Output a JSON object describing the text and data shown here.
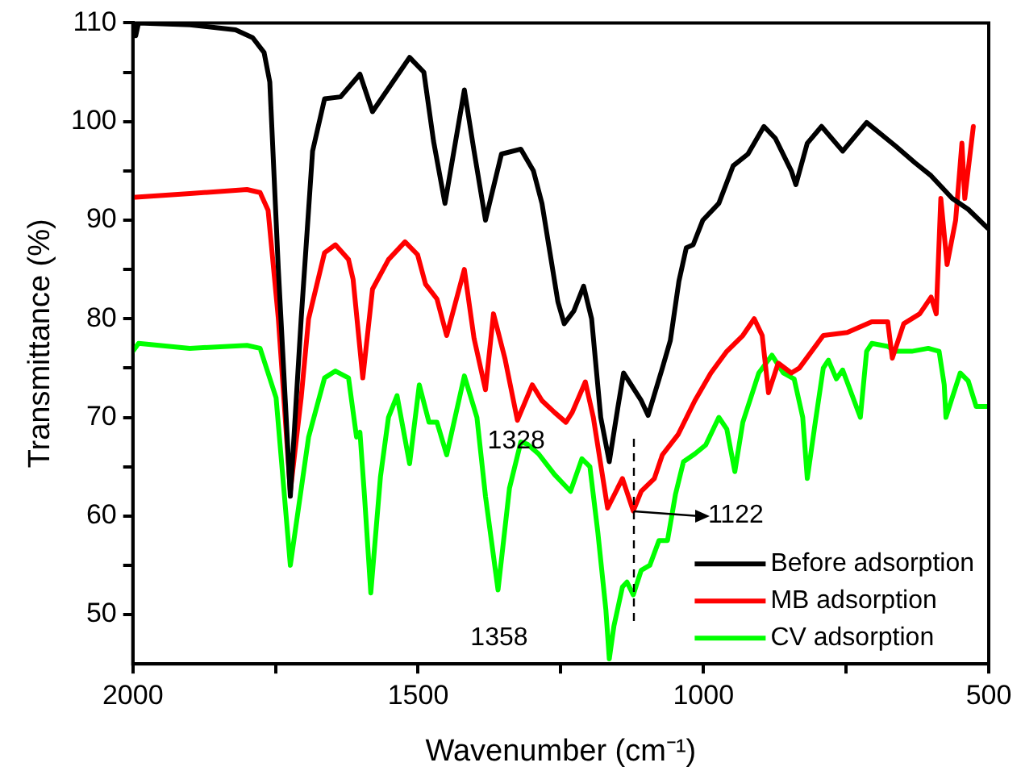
{
  "chart_data": {
    "type": "line",
    "xlabel": "Wavenumber (cm⁻¹)",
    "ylabel": "Transmittance (%)",
    "xlim": [
      2000,
      500
    ],
    "xticks": [
      2000,
      {
        "value": 1750,
        "label": null
      },
      1500,
      {
        "value": 1250,
        "label": null
      },
      1000,
      {
        "value": 750,
        "label": null
      },
      500
    ],
    "ylim": [
      45,
      110
    ],
    "yticks": [
      50,
      {
        "value": 55,
        "label": null
      },
      60,
      {
        "value": 65,
        "label": null
      },
      70,
      {
        "value": 75,
        "label": null
      },
      80,
      {
        "value": 85,
        "label": null
      },
      90,
      {
        "value": 95,
        "label": null
      },
      100,
      {
        "value": 105,
        "label": null
      },
      110
    ],
    "grid": false,
    "legend": "bottom right",
    "marker": "none",
    "line_style": "solid",
    "series": [
      {
        "name": "Before adsorption",
        "color": "#000000",
        "x": [
          2000,
          1995,
          1990,
          1900,
          1820,
          1790,
          1770,
          1760,
          1745,
          1724,
          1705,
          1685,
          1664,
          1636,
          1602,
          1580,
          1515,
          1490,
          1473,
          1453,
          1419,
          1402,
          1382,
          1354,
          1320,
          1298,
          1283,
          1269,
          1255,
          1244,
          1227,
          1210,
          1196,
          1180,
          1165,
          1150,
          1140,
          1109,
          1097,
          1072,
          1058,
          1043,
          1030,
          1018,
          1001,
          973,
          948,
          922,
          894,
          874,
          846,
          838,
          818,
          793,
          756,
          714,
          663,
          629,
          601,
          564,
          536,
          502
        ],
        "values": [
          110,
          108.7,
          110,
          109.8,
          109.3,
          108.5,
          107,
          104,
          85,
          62,
          80,
          97,
          102.3,
          102.5,
          104.8,
          101,
          106.5,
          105,
          98,
          91.7,
          103.2,
          97,
          90,
          96.7,
          97.2,
          95,
          91.7,
          86.7,
          81.7,
          79.5,
          80.8,
          83.3,
          80,
          70,
          65.5,
          71,
          74.5,
          71.7,
          70.2,
          75,
          77.8,
          83.8,
          87.2,
          87.5,
          90,
          91.7,
          95.5,
          96.7,
          99.5,
          98.3,
          95,
          93.6,
          97.8,
          99.5,
          97,
          99.9,
          97.5,
          95.8,
          94.5,
          92.2,
          91.1,
          89.2
        ]
      },
      {
        "name": "MB adsorption",
        "color": "#ff0000",
        "x": [
          2000,
          1900,
          1800,
          1777,
          1763,
          1745,
          1724,
          1705,
          1692,
          1664,
          1645,
          1622,
          1614,
          1597,
          1580,
          1552,
          1523,
          1501,
          1487,
          1467,
          1450,
          1419,
          1402,
          1382,
          1368,
          1348,
          1326,
          1300,
          1283,
          1261,
          1241,
          1230,
          1207,
          1193,
          1168,
          1142,
          1123,
          1109,
          1086,
          1072,
          1044,
          1015,
          987,
          959,
          931,
          911,
          897,
          886,
          869,
          846,
          832,
          790,
          748,
          705,
          677,
          669,
          649,
          621,
          601,
          592,
          584,
          573,
          558,
          547,
          542,
          527
        ],
        "values": [
          92.3,
          92.7,
          93.1,
          92.8,
          91,
          80,
          62.5,
          72,
          80,
          86.7,
          87.5,
          86,
          84,
          74,
          83,
          86,
          87.8,
          86.5,
          83.5,
          82,
          78.3,
          85,
          78,
          72.8,
          80.5,
          76,
          69.7,
          73.3,
          71.7,
          70.5,
          69.5,
          70.5,
          73.6,
          70,
          60.8,
          63.8,
          60.5,
          62.5,
          63.8,
          66.2,
          68.3,
          71.7,
          74.5,
          76.7,
          78.3,
          80,
          78.3,
          72.5,
          75.5,
          74.5,
          75,
          78.3,
          78.6,
          79.7,
          79.7,
          76,
          79.5,
          80.5,
          82.2,
          80.5,
          92.2,
          85.5,
          90,
          97.8,
          92.2,
          99.5
        ]
      },
      {
        "name": "CV adsorption",
        "color": "#00ff00",
        "x": [
          2000,
          1990,
          1900,
          1800,
          1777,
          1749,
          1724,
          1692,
          1664,
          1645,
          1622,
          1608,
          1602,
          1594,
          1583,
          1566,
          1552,
          1537,
          1515,
          1498,
          1481,
          1467,
          1450,
          1419,
          1397,
          1382,
          1360,
          1340,
          1320,
          1309,
          1289,
          1261,
          1233,
          1213,
          1199,
          1185,
          1171,
          1165,
          1157,
          1142,
          1134,
          1123,
          1109,
          1094,
          1078,
          1063,
          1049,
          1035,
          1015,
          996,
          973,
          959,
          945,
          931,
          917,
          903,
          880,
          860,
          841,
          826,
          818,
          804,
          790,
          781,
          767,
          756,
          725,
          714,
          705,
          677,
          663,
          635,
          606,
          587,
          578,
          575,
          564,
          550,
          536,
          522,
          502
        ],
        "values": [
          76.7,
          77.5,
          77,
          77.3,
          77,
          72,
          55,
          68,
          74,
          74.7,
          74,
          68,
          68.5,
          62,
          52.2,
          64,
          70,
          72.2,
          65.3,
          73.3,
          69.5,
          69.5,
          66.2,
          74.2,
          70,
          62,
          52.5,
          62.8,
          67.5,
          67.3,
          66.3,
          64.2,
          62.5,
          65.8,
          65,
          58.3,
          50.5,
          45.5,
          48.8,
          52.8,
          53.3,
          52,
          54.5,
          55,
          57.5,
          57.5,
          62.2,
          65.5,
          66.3,
          67.2,
          70,
          68.8,
          64.5,
          69.5,
          72,
          74.5,
          76.3,
          74.5,
          73.9,
          70,
          63.8,
          69.5,
          75,
          75.8,
          73.9,
          74.8,
          70,
          76.7,
          77.5,
          77.2,
          76.7,
          76.7,
          77,
          76.7,
          73.3,
          70,
          72,
          74.5,
          73.7,
          71.1,
          71.1
        ]
      }
    ],
    "annotations": [
      {
        "text": "1328",
        "x": 1328,
        "y": 69.7
      },
      {
        "text": "1358",
        "x": 1358,
        "y": 52.5
      },
      {
        "text": "1122",
        "x": 1122,
        "y": 60.5
      }
    ]
  }
}
